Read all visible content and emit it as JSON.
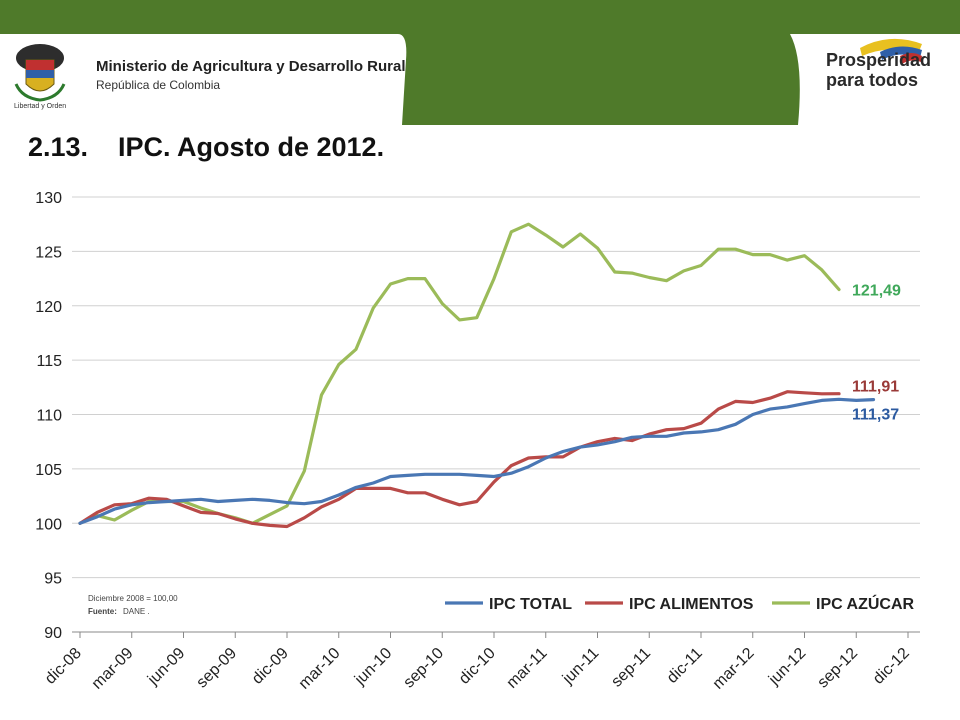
{
  "header": {
    "ministry": "Ministerio de Agricultura y Desarrollo Rural",
    "republic": "República de Colombia",
    "motto": "Libertad y Orden",
    "brand_line1": "Prosperidad",
    "brand_line2": "para todos",
    "band_color": "#4f7a2a"
  },
  "slide": {
    "number": "2.13.",
    "title": "IPC. Agosto de 2012."
  },
  "chart_data": {
    "type": "line",
    "title": "",
    "xlabel": "",
    "ylabel": "",
    "ylim": [
      90,
      130
    ],
    "y_ticks": [
      "130",
      "125",
      "120",
      "115",
      "110",
      "105",
      "100",
      "95",
      "90"
    ],
    "x_tick_labels": [
      "dic-08",
      "mar-09",
      "jun-09",
      "sep-09",
      "dic-09",
      "mar-10",
      "jun-10",
      "sep-10",
      "dic-10",
      "mar-11",
      "jun-11",
      "sep-11",
      "dic-11",
      "mar-12",
      "jun-12",
      "sep-12",
      "dic-12"
    ],
    "grid": "horizontal",
    "legend_position": "bottom-right",
    "note": "Diciembre 2008 = 100,00",
    "source_label": "Fuente:",
    "source_value": "DANE .",
    "end_labels": {
      "azucar": "121,49",
      "alimentos": "111,91",
      "total": "111,37"
    },
    "series": [
      {
        "name": "IPC TOTAL",
        "color": "#4a77b4",
        "values": [
          100,
          100.6,
          101.3,
          101.7,
          101.9,
          102.0,
          102.1,
          102.2,
          102.0,
          102.1,
          102.2,
          102.1,
          101.9,
          101.8,
          102.0,
          102.6,
          103.3,
          103.7,
          104.3,
          104.4,
          104.5,
          104.5,
          104.5,
          104.4,
          104.3,
          104.6,
          105.2,
          106.0,
          106.6,
          107.0,
          107.2,
          107.5,
          107.9,
          108.0,
          108.0,
          108.3,
          108.4,
          108.6,
          109.1,
          110.0,
          110.5,
          110.7,
          111.0,
          111.3,
          111.4,
          111.3,
          111.37
        ]
      },
      {
        "name": "IPC ALIMENTOS",
        "color": "#b94a48",
        "values": [
          100,
          101.0,
          101.7,
          101.8,
          102.3,
          102.2,
          101.6,
          101.0,
          100.9,
          100.4,
          100.0,
          99.8,
          99.7,
          100.5,
          101.5,
          102.2,
          103.2,
          103.2,
          103.2,
          102.8,
          102.8,
          102.2,
          101.7,
          102.0,
          103.8,
          105.3,
          106.0,
          106.1,
          106.1,
          107.0,
          107.5,
          107.8,
          107.6,
          108.2,
          108.6,
          108.7,
          109.2,
          110.5,
          111.2,
          111.1,
          111.5,
          112.1,
          112.0,
          111.9,
          111.91
        ]
      },
      {
        "name": "IPC AZÚCAR",
        "color": "#9bbb59",
        "values": [
          100,
          100.7,
          100.3,
          101.2,
          102.0,
          102.0,
          102.0,
          101.4,
          100.9,
          100.5,
          100.0,
          100.8,
          101.6,
          104.8,
          111.8,
          114.6,
          116.0,
          119.8,
          122.0,
          122.5,
          122.5,
          120.2,
          118.7,
          118.9,
          122.5,
          126.8,
          127.5,
          126.5,
          125.4,
          126.6,
          125.3,
          123.1,
          123.0,
          122.6,
          122.3,
          123.2,
          123.7,
          125.2,
          125.2,
          124.7,
          124.7,
          124.2,
          124.6,
          123.3,
          121.49
        ]
      }
    ]
  }
}
